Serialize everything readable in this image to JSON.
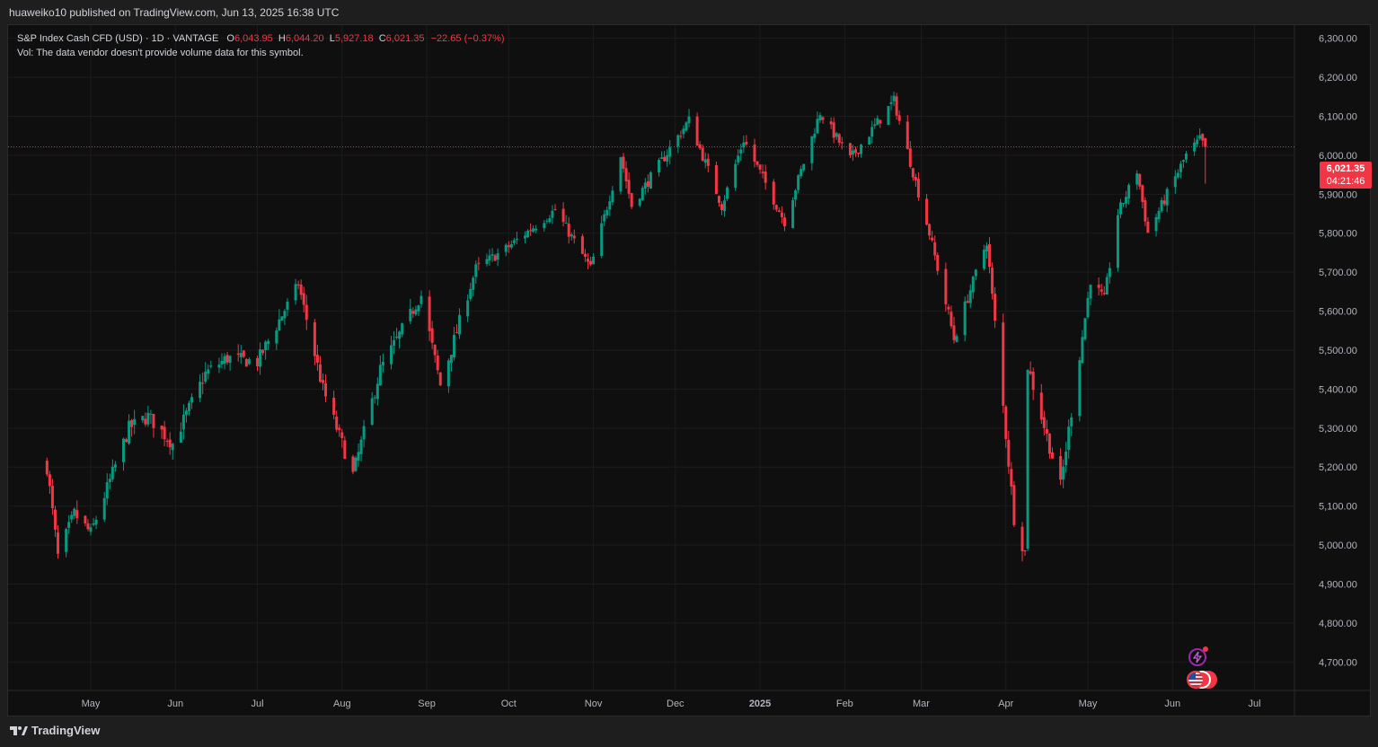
{
  "header": {
    "published": "huaweiko10 published on TradingView.com, Jun 13, 2025 16:38 UTC"
  },
  "legend": {
    "symbol": "S&P Index Cash CFD (USD) · 1D · VANTAGE",
    "o_label": "O",
    "o_value": "6,043.95",
    "h_label": "H",
    "h_value": "6,044.20",
    "l_label": "L",
    "l_value": "5,927.18",
    "c_label": "C",
    "c_value": "6,021.35",
    "change": "−22.65 (−0.37%)",
    "vol_note": "Vol: The data vendor doesn't provide volume data for this symbol."
  },
  "last_price": {
    "value": "6,021.35",
    "countdown": "04:21:46"
  },
  "footer": {
    "brand": "TradingView"
  },
  "colors": {
    "up": "#089981",
    "down": "#f23645",
    "background": "#0f0f0f",
    "grid": "#1c1c1c",
    "text": "#d1d4dc"
  },
  "chart_data": {
    "type": "candlestick",
    "symbol": "S&P Index Cash CFD (USD)",
    "interval": "1D",
    "ylim": [
      4650,
      6320
    ],
    "y_ticks": [
      "6,300.00",
      "6,200.00",
      "6,100.00",
      "6,000.00",
      "5,900.00",
      "5,800.00",
      "5,700.00",
      "5,600.00",
      "5,500.00",
      "5,400.00",
      "5,300.00",
      "5,200.00",
      "5,100.00",
      "5,000.00",
      "4,900.00",
      "4,800.00",
      "4,700.00"
    ],
    "x_ticks": [
      "May",
      "Jun",
      "Jul",
      "Aug",
      "Sep",
      "Oct",
      "Nov",
      "Dec",
      "2025",
      "Feb",
      "Mar",
      "Apr",
      "May",
      "Jun",
      "Jul"
    ],
    "last_close": 6021.35,
    "close_path": [
      [
        "2024-04-15",
        5200
      ],
      [
        "2024-04-19",
        4970
      ],
      [
        "2024-04-25",
        5080
      ],
      [
        "2024-05-01",
        5030
      ],
      [
        "2024-05-15",
        5300
      ],
      [
        "2024-05-22",
        5330
      ],
      [
        "2024-05-31",
        5260
      ],
      [
        "2024-06-12",
        5440
      ],
      [
        "2024-06-20",
        5480
      ],
      [
        "2024-07-01",
        5470
      ],
      [
        "2024-07-16",
        5670
      ],
      [
        "2024-07-25",
        5400
      ],
      [
        "2024-08-05",
        5180
      ],
      [
        "2024-08-15",
        5450
      ],
      [
        "2024-08-30",
        5640
      ],
      [
        "2024-09-06",
        5410
      ],
      [
        "2024-09-19",
        5710
      ],
      [
        "2024-09-30",
        5760
      ],
      [
        "2024-10-18",
        5860
      ],
      [
        "2024-10-31",
        5710
      ],
      [
        "2024-11-11",
        6000
      ],
      [
        "2024-11-15",
        5870
      ],
      [
        "2024-12-06",
        6090
      ],
      [
        "2024-12-18",
        5870
      ],
      [
        "2024-12-26",
        6040
      ],
      [
        "2025-01-10",
        5830
      ],
      [
        "2025-01-23",
        6110
      ],
      [
        "2025-02-03",
        5990
      ],
      [
        "2025-02-19",
        6140
      ],
      [
        "2025-03-04",
        5800
      ],
      [
        "2025-03-13",
        5530
      ],
      [
        "2025-03-25",
        5780
      ],
      [
        "2025-04-04",
        5070
      ],
      [
        "2025-04-08",
        4980
      ],
      [
        "2025-04-09",
        5460
      ],
      [
        "2025-04-21",
        5150
      ],
      [
        "2025-05-02",
        5680
      ],
      [
        "2025-05-07",
        5630
      ],
      [
        "2025-05-12",
        5850
      ],
      [
        "2025-05-19",
        5960
      ],
      [
        "2025-05-23",
        5800
      ],
      [
        "2025-06-06",
        6000
      ],
      [
        "2025-06-11",
        6040
      ],
      [
        "2025-06-13",
        6021.35
      ]
    ]
  }
}
